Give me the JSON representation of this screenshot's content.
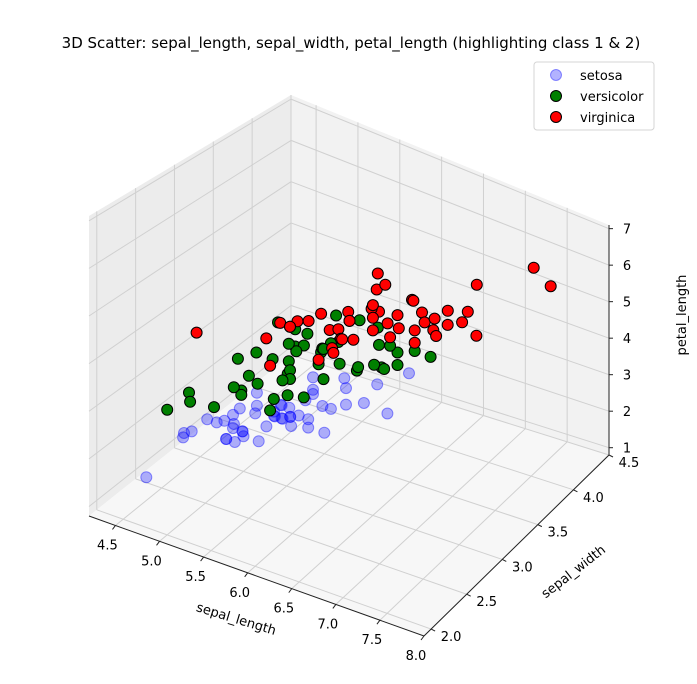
{
  "chart_data": {
    "type": "scatter",
    "projection": "3d",
    "title": "3D Scatter: sepal_length, sepal_width, petal_length (highlighting class 1 & 2)",
    "xlabel": "sepal_length",
    "ylabel": "sepal_width",
    "zlabel": "petal_length",
    "xlim": [
      4.2,
      8.0
    ],
    "ylim": [
      1.9,
      4.5
    ],
    "zlim": [
      0.8,
      7.1
    ],
    "x_ticks": [
      "4.5",
      "5.0",
      "5.5",
      "6.0",
      "6.5",
      "7.0",
      "7.5",
      "8.0"
    ],
    "y_ticks": [
      "2.0",
      "2.5",
      "3.0",
      "3.5",
      "4.0",
      "4.5"
    ],
    "z_ticks": [
      "1",
      "2",
      "3",
      "4",
      "5",
      "6",
      "7"
    ],
    "grid": true,
    "legend_position": "top-right",
    "series": [
      {
        "name": "setosa",
        "color": "#0000ff",
        "opacity": 0.3,
        "points": [
          [
            5.1,
            3.5,
            1.4
          ],
          [
            4.9,
            3.0,
            1.4
          ],
          [
            4.7,
            3.2,
            1.3
          ],
          [
            4.6,
            3.1,
            1.5
          ],
          [
            5.0,
            3.6,
            1.4
          ],
          [
            5.4,
            3.9,
            1.7
          ],
          [
            4.6,
            3.4,
            1.4
          ],
          [
            5.0,
            3.4,
            1.5
          ],
          [
            4.4,
            2.9,
            1.4
          ],
          [
            4.9,
            3.1,
            1.5
          ],
          [
            5.4,
            3.7,
            1.5
          ],
          [
            4.8,
            3.4,
            1.6
          ],
          [
            4.8,
            3.0,
            1.4
          ],
          [
            4.3,
            3.0,
            1.1
          ],
          [
            5.8,
            4.0,
            1.2
          ],
          [
            5.7,
            4.4,
            1.5
          ],
          [
            5.4,
            3.9,
            1.3
          ],
          [
            5.1,
            3.5,
            1.4
          ],
          [
            5.7,
            3.8,
            1.7
          ],
          [
            5.1,
            3.8,
            1.5
          ],
          [
            5.4,
            3.4,
            1.7
          ],
          [
            5.1,
            3.7,
            1.5
          ],
          [
            4.6,
            3.6,
            1.0
          ],
          [
            5.1,
            3.3,
            1.7
          ],
          [
            4.8,
            3.4,
            1.9
          ],
          [
            5.0,
            3.0,
            1.6
          ],
          [
            5.0,
            3.4,
            1.6
          ],
          [
            5.2,
            3.5,
            1.5
          ],
          [
            5.2,
            3.4,
            1.4
          ],
          [
            4.7,
            3.2,
            1.6
          ],
          [
            4.8,
            3.1,
            1.6
          ],
          [
            5.4,
            3.4,
            1.5
          ],
          [
            5.2,
            4.1,
            1.5
          ],
          [
            5.5,
            4.2,
            1.4
          ],
          [
            4.9,
            3.1,
            1.5
          ],
          [
            5.0,
            3.2,
            1.2
          ],
          [
            5.5,
            3.5,
            1.3
          ],
          [
            4.9,
            3.6,
            1.4
          ],
          [
            4.4,
            3.0,
            1.3
          ],
          [
            5.1,
            3.4,
            1.5
          ],
          [
            5.0,
            3.5,
            1.3
          ],
          [
            4.5,
            2.3,
            1.3
          ],
          [
            4.4,
            3.2,
            1.3
          ],
          [
            5.0,
            3.5,
            1.6
          ],
          [
            5.1,
            3.8,
            1.9
          ],
          [
            4.8,
            3.0,
            1.4
          ],
          [
            5.1,
            3.8,
            1.6
          ],
          [
            4.6,
            3.2,
            1.4
          ],
          [
            5.3,
            3.7,
            1.5
          ],
          [
            5.0,
            3.3,
            1.4
          ]
        ]
      },
      {
        "name": "versicolor",
        "color": "#008000",
        "opacity": 1,
        "points": [
          [
            7.0,
            3.2,
            4.7
          ],
          [
            6.4,
            3.2,
            4.5
          ],
          [
            6.9,
            3.1,
            4.9
          ],
          [
            5.5,
            2.3,
            4.0
          ],
          [
            6.5,
            2.8,
            4.6
          ],
          [
            5.7,
            2.8,
            4.5
          ],
          [
            6.3,
            3.3,
            4.7
          ],
          [
            4.9,
            2.4,
            3.3
          ],
          [
            6.6,
            2.9,
            4.6
          ],
          [
            5.2,
            2.7,
            3.9
          ],
          [
            5.0,
            2.0,
            3.5
          ],
          [
            5.9,
            3.0,
            4.2
          ],
          [
            6.0,
            2.2,
            4.0
          ],
          [
            6.1,
            2.9,
            4.7
          ],
          [
            5.6,
            2.9,
            3.6
          ],
          [
            6.7,
            3.1,
            4.4
          ],
          [
            5.6,
            3.0,
            4.5
          ],
          [
            5.8,
            2.7,
            4.1
          ],
          [
            6.2,
            2.2,
            4.5
          ],
          [
            5.6,
            2.5,
            3.9
          ],
          [
            5.9,
            3.2,
            4.8
          ],
          [
            6.1,
            2.8,
            4.0
          ],
          [
            6.3,
            2.5,
            4.9
          ],
          [
            6.1,
            2.8,
            4.7
          ],
          [
            6.4,
            2.9,
            4.3
          ],
          [
            6.6,
            3.0,
            4.4
          ],
          [
            6.8,
            2.8,
            4.8
          ],
          [
            6.7,
            3.0,
            5.0
          ],
          [
            6.0,
            2.9,
            4.5
          ],
          [
            5.7,
            2.6,
            3.5
          ],
          [
            5.5,
            2.4,
            3.8
          ],
          [
            5.5,
            2.4,
            3.7
          ],
          [
            5.8,
            2.7,
            3.9
          ],
          [
            6.0,
            2.7,
            5.1
          ],
          [
            5.4,
            3.0,
            4.5
          ],
          [
            6.0,
            3.4,
            4.5
          ],
          [
            6.7,
            3.1,
            4.7
          ],
          [
            6.3,
            2.3,
            4.4
          ],
          [
            5.6,
            3.0,
            4.1
          ],
          [
            5.5,
            2.5,
            4.0
          ],
          [
            5.5,
            2.6,
            4.4
          ],
          [
            6.1,
            3.0,
            4.6
          ],
          [
            5.8,
            2.6,
            4.0
          ],
          [
            5.0,
            2.3,
            3.3
          ],
          [
            5.6,
            2.7,
            4.2
          ],
          [
            5.7,
            3.0,
            4.2
          ],
          [
            5.7,
            2.9,
            4.2
          ],
          [
            6.2,
            2.9,
            4.3
          ],
          [
            5.1,
            2.5,
            3.0
          ],
          [
            5.7,
            2.8,
            4.1
          ]
        ]
      },
      {
        "name": "virginica",
        "color": "#ff0000",
        "opacity": 1,
        "points": [
          [
            6.3,
            3.3,
            6.0
          ],
          [
            5.8,
            2.7,
            5.1
          ],
          [
            7.1,
            3.0,
            5.9
          ],
          [
            6.3,
            2.9,
            5.6
          ],
          [
            6.5,
            3.0,
            5.8
          ],
          [
            7.6,
            3.0,
            6.6
          ],
          [
            4.9,
            2.5,
            4.5
          ],
          [
            7.3,
            2.9,
            6.3
          ],
          [
            6.7,
            2.5,
            5.8
          ],
          [
            7.2,
            3.6,
            6.1
          ],
          [
            6.5,
            3.2,
            5.1
          ],
          [
            6.4,
            2.7,
            5.3
          ],
          [
            6.8,
            3.0,
            5.5
          ],
          [
            5.7,
            2.5,
            5.0
          ],
          [
            5.8,
            2.8,
            5.1
          ],
          [
            6.4,
            3.2,
            5.3
          ],
          [
            6.5,
            3.0,
            5.5
          ],
          [
            7.7,
            3.8,
            6.7
          ],
          [
            7.7,
            2.6,
            6.9
          ],
          [
            6.0,
            2.2,
            5.0
          ],
          [
            6.9,
            3.2,
            5.7
          ],
          [
            5.6,
            2.8,
            4.9
          ],
          [
            7.7,
            2.8,
            6.7
          ],
          [
            6.3,
            2.7,
            4.9
          ],
          [
            6.7,
            3.3,
            5.7
          ],
          [
            7.2,
            3.2,
            6.0
          ],
          [
            6.2,
            2.8,
            4.8
          ],
          [
            6.1,
            3.0,
            4.9
          ],
          [
            6.4,
            2.8,
            5.6
          ],
          [
            7.2,
            3.0,
            5.8
          ],
          [
            7.4,
            2.8,
            6.1
          ],
          [
            7.9,
            3.8,
            6.4
          ],
          [
            6.4,
            2.8,
            5.6
          ],
          [
            6.3,
            2.8,
            5.1
          ],
          [
            6.1,
            2.6,
            5.6
          ],
          [
            7.7,
            3.0,
            6.1
          ],
          [
            6.3,
            3.4,
            5.6
          ],
          [
            6.4,
            3.1,
            5.5
          ],
          [
            6.0,
            3.0,
            4.8
          ],
          [
            6.9,
            3.1,
            5.4
          ],
          [
            6.7,
            3.1,
            5.6
          ],
          [
            6.9,
            3.1,
            5.1
          ],
          [
            5.8,
            2.7,
            5.1
          ],
          [
            6.8,
            3.2,
            5.9
          ],
          [
            6.7,
            3.3,
            5.7
          ],
          [
            6.7,
            3.0,
            5.2
          ],
          [
            6.3,
            2.5,
            5.0
          ],
          [
            6.5,
            3.0,
            5.2
          ],
          [
            6.2,
            3.4,
            5.4
          ],
          [
            5.9,
            3.0,
            5.1
          ]
        ]
      }
    ]
  }
}
